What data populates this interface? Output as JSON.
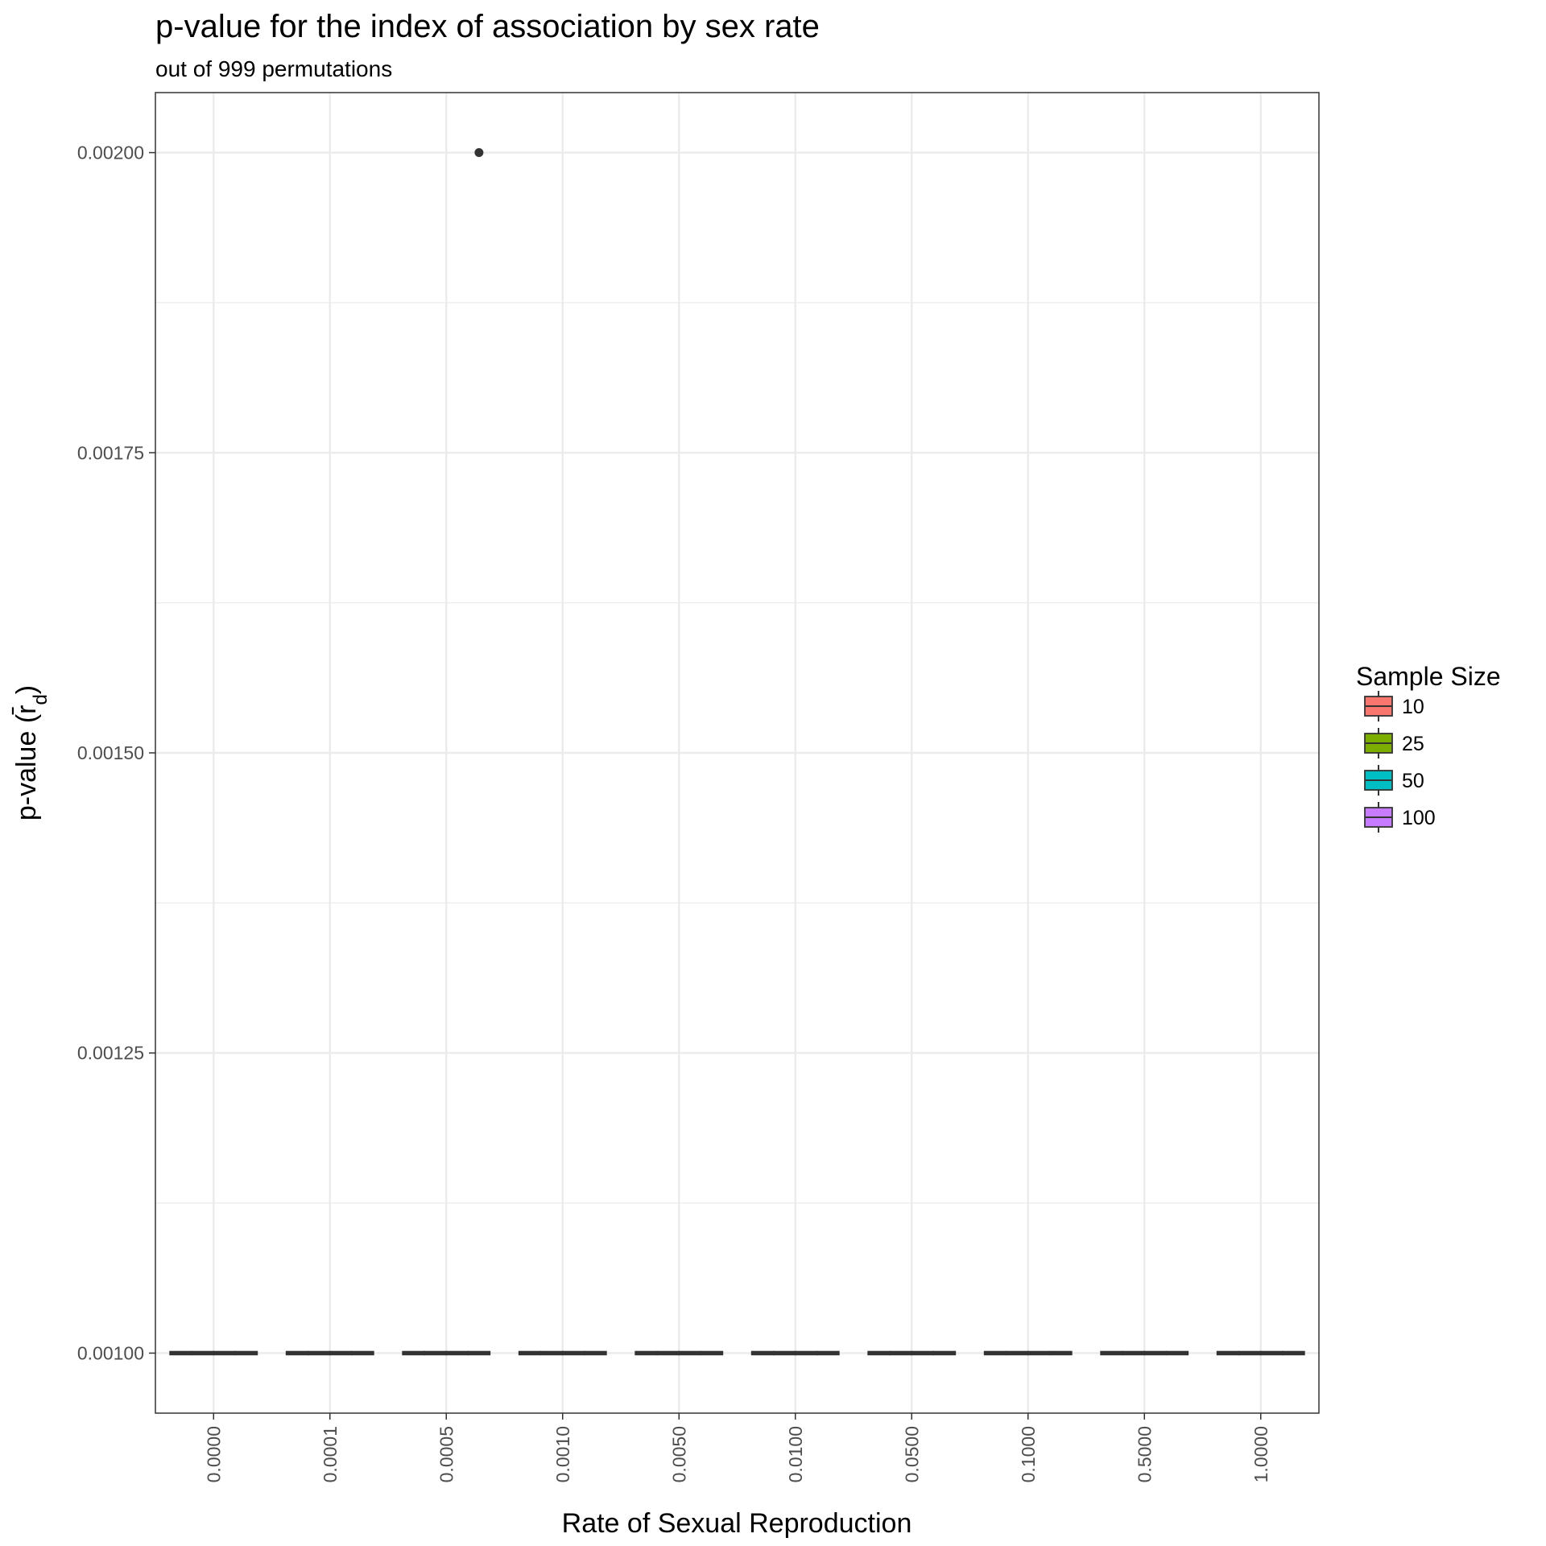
{
  "chart_data": {
    "type": "box",
    "title": "p-value for the index of association by sex rate",
    "subtitle": "out of 999 permutations",
    "xlabel": "Rate of Sexual Reproduction",
    "ylabel": "p-value (r̄d)",
    "ylabel_main": "p-value (",
    "ylabel_symbol": "r̄",
    "ylabel_subscript": "d",
    "ylabel_close": ")",
    "ylim": [
      0.00095,
      0.00205
    ],
    "yticks": [
      0.001,
      0.00125,
      0.0015,
      0.00175,
      0.002
    ],
    "ytick_labels": [
      "0.00100",
      "0.00125",
      "0.00150",
      "0.00175",
      "0.00200"
    ],
    "categories": [
      "0.0000",
      "0.0001",
      "0.0005",
      "0.0010",
      "0.0050",
      "0.0100",
      "0.0500",
      "0.1000",
      "0.5000",
      "1.0000"
    ],
    "legend": {
      "title": "Sample Size",
      "position": "right"
    },
    "series": [
      {
        "name": "10",
        "color": "#F8766D",
        "median": [
          0.001,
          0.001,
          0.001,
          0.001,
          0.001,
          0.001,
          0.001,
          0.001,
          0.001,
          0.001
        ]
      },
      {
        "name": "25",
        "color": "#7CAE00",
        "median": [
          0.001,
          0.001,
          0.001,
          0.001,
          0.001,
          0.001,
          0.001,
          0.001,
          0.001,
          0.001
        ]
      },
      {
        "name": "50",
        "color": "#00BFC4",
        "median": [
          0.001,
          0.001,
          0.001,
          0.001,
          0.001,
          0.001,
          0.001,
          0.001,
          0.001,
          0.001
        ]
      },
      {
        "name": "100",
        "color": "#C77CFF",
        "median": [
          0.001,
          0.001,
          0.001,
          0.001,
          0.001,
          0.001,
          0.001,
          0.001,
          0.001,
          0.001
        ]
      }
    ],
    "outliers": [
      {
        "category": "0.0005",
        "series": "100",
        "value": 0.002
      }
    ],
    "grid": true
  }
}
